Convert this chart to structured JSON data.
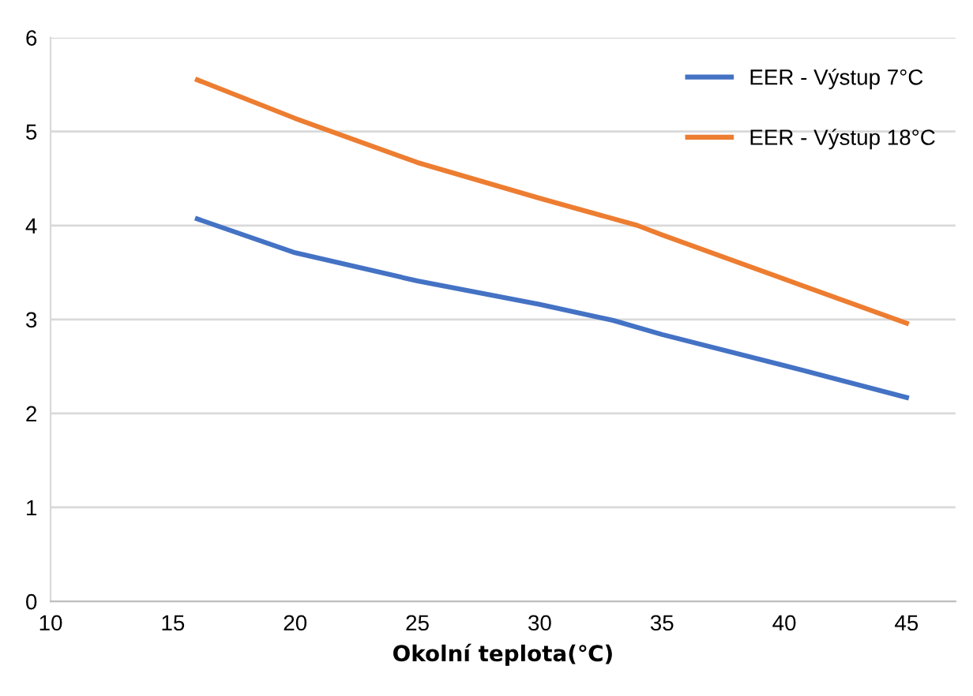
{
  "chart_data": {
    "type": "line",
    "xlabel": "Okolní teplota(℃)",
    "xlim": [
      10,
      47
    ],
    "xticks": [
      10,
      15,
      20,
      25,
      30,
      35,
      40,
      45
    ],
    "ylim": [
      0,
      6
    ],
    "yticks": [
      0,
      1,
      2,
      3,
      4,
      5,
      6
    ],
    "grid": "y",
    "legend": "top right",
    "series": [
      {
        "name": "EER - Výstup 7°C",
        "color": "#4472c4",
        "x": [
          16,
          20,
          25,
          30,
          33,
          35,
          40,
          45
        ],
        "values": [
          4.07,
          3.71,
          3.41,
          3.16,
          2.99,
          2.84,
          2.51,
          2.17
        ]
      },
      {
        "name": "EER - Výstup 18°C",
        "color": "#ed7d31",
        "x": [
          16,
          20,
          25,
          30,
          34,
          35,
          40,
          45
        ],
        "values": [
          5.55,
          5.14,
          4.67,
          4.29,
          4.0,
          3.9,
          3.43,
          2.96
        ]
      }
    ]
  }
}
